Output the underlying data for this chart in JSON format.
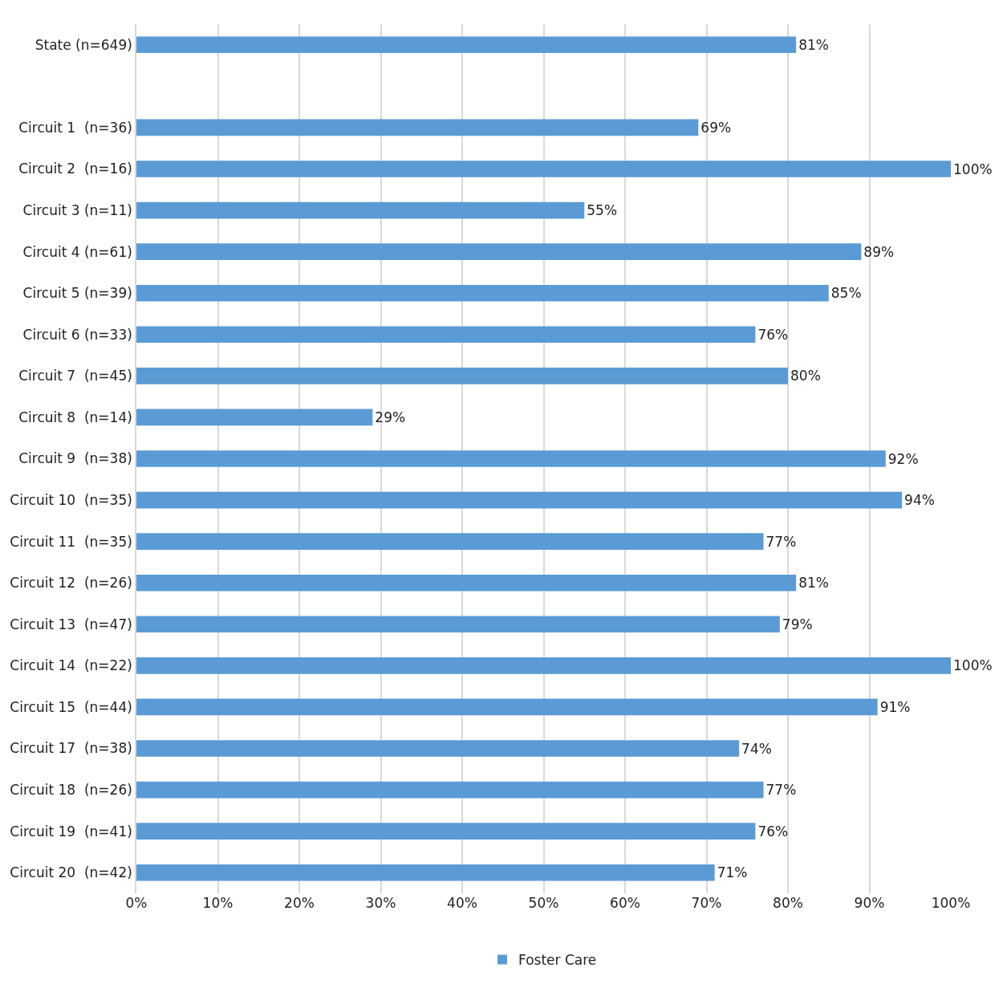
{
  "chart_data": {
    "type": "bar",
    "orientation": "horizontal",
    "categories": [
      "State (n=649)",
      null,
      "Circuit 1  (n=36)",
      "Circuit 2  (n=16)",
      "Circuit 3 (n=11)",
      "Circuit 4 (n=61)",
      "Circuit 5 (n=39)",
      "Circuit 6 (n=33)",
      "Circuit 7  (n=45)",
      "Circuit 8  (n=14)",
      "Circuit 9  (n=38)",
      "Circuit 10  (n=35)",
      "Circuit 11  (n=35)",
      "Circuit 12  (n=26)",
      "Circuit 13  (n=47)",
      "Circuit 14  (n=22)",
      "Circuit 15  (n=44)",
      "Circuit 17  (n=38)",
      "Circuit 18  (n=26)",
      "Circuit 19  (n=41)",
      "Circuit 20  (n=42)"
    ],
    "series": [
      {
        "name": "Foster Care",
        "color": "#5b9bd5",
        "values": [
          81,
          null,
          69,
          100,
          55,
          89,
          85,
          76,
          80,
          29,
          92,
          94,
          77,
          81,
          79,
          100,
          91,
          74,
          77,
          76,
          71
        ],
        "value_labels": [
          "81%",
          null,
          "69%",
          "100%",
          "55%",
          "89%",
          "85%",
          "76%",
          "80%",
          "29%",
          "92%",
          "94%",
          "77%",
          "81%",
          "79%",
          "100%",
          "91%",
          "74%",
          "77%",
          "76%",
          "71%"
        ]
      }
    ],
    "xlim": [
      0,
      100
    ],
    "xticks": [
      {
        "value": 0,
        "label": "0%"
      },
      {
        "value": 10,
        "label": "10%"
      },
      {
        "value": 20,
        "label": "20%"
      },
      {
        "value": 30,
        "label": "30%"
      },
      {
        "value": 40,
        "label": "40%"
      },
      {
        "value": 50,
        "label": "50%"
      },
      {
        "value": 60,
        "label": "60%"
      },
      {
        "value": 70,
        "label": "70%"
      },
      {
        "value": 80,
        "label": "80%"
      },
      {
        "value": 90,
        "label": "90%"
      },
      {
        "value": 100,
        "label": "100%"
      }
    ],
    "grid": "x",
    "legend": "bottom"
  }
}
